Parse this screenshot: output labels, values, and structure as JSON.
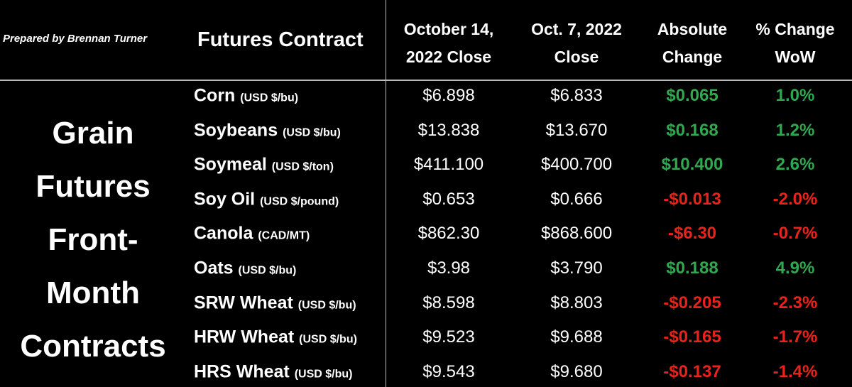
{
  "credit": "Prepared by Brennan Turner",
  "header": {
    "contract": "Futures Contract",
    "columns": [
      [
        "October 14,",
        "2022 Close"
      ],
      [
        "Oct. 7, 2022",
        "Close"
      ],
      [
        "Absolute",
        "Change"
      ],
      [
        "% Change",
        "WoW"
      ]
    ]
  },
  "side_label": [
    "Grain",
    "Futures",
    "Front-",
    "Month",
    "Contracts"
  ],
  "table": {
    "rows": [
      {
        "name": "Corn",
        "unit": "(USD $/bu)",
        "cells": [
          "$6.898",
          "$6.833",
          "$0.065",
          "1.0%"
        ]
      },
      {
        "name": "Soybeans",
        "unit": "(USD $/bu)",
        "cells": [
          "$13.838",
          "$13.670",
          "$0.168",
          "1.2%"
        ]
      },
      {
        "name": "Soymeal",
        "unit": "(USD $/ton)",
        "cells": [
          "$411.100",
          "$400.700",
          "$10.400",
          "2.6%"
        ]
      },
      {
        "name": "Soy Oil",
        "unit": "(USD $/pound)",
        "cells": [
          "$0.653",
          "$0.666",
          "-$0.013",
          "-2.0%"
        ]
      },
      {
        "name": "Canola",
        "unit": "(CAD/MT)",
        "cells": [
          "$862.30",
          "$868.600",
          "-$6.30",
          "-0.7%"
        ]
      },
      {
        "name": "Oats",
        "unit": "(USD $/bu)",
        "cells": [
          "$3.98",
          "$3.790",
          "$0.188",
          "4.9%"
        ]
      },
      {
        "name": "SRW Wheat",
        "unit": "(USD $/bu)",
        "cells": [
          "$8.598",
          "$8.803",
          "-$0.205",
          "-2.3%"
        ]
      },
      {
        "name": "HRW Wheat",
        "unit": "(USD $/bu)",
        "cells": [
          "$9.523",
          "$9.688",
          "-$0.165",
          "-1.7%"
        ]
      },
      {
        "name": "HRS Wheat",
        "unit": "(USD $/bu)",
        "cells": [
          "$9.543",
          "$9.680",
          "-$0.137",
          "-1.4%"
        ]
      }
    ]
  }
}
